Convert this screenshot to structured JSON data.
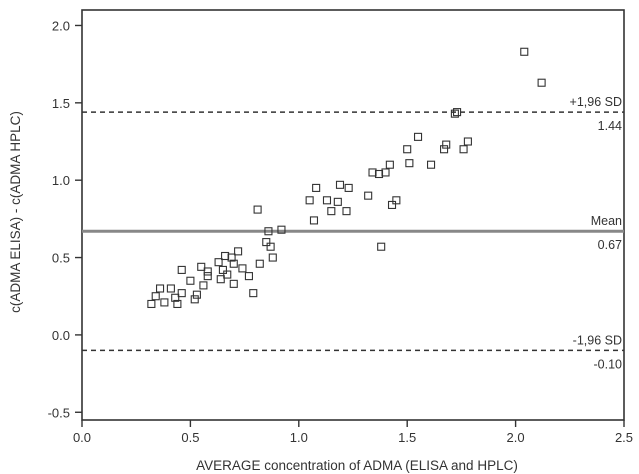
{
  "chart_data": {
    "type": "scatter",
    "xlabel": "AVERAGE concentration of ADMA (ELISA and HPLC)",
    "ylabel": "c(ADMA ELISA) - c(ADMA HPLC)",
    "xlim": [
      0,
      2.5
    ],
    "ylim": [
      -0.55,
      2.1
    ],
    "xticks": [
      "0.0",
      "0.5",
      "1.0",
      "1.5",
      "2.0",
      "2.5"
    ],
    "yticks": [
      "-0.5",
      "0.0",
      "0.5",
      "1.0",
      "1.5",
      "2.0"
    ],
    "grid": false,
    "reference_lines": [
      {
        "y": 1.44,
        "style": "dashed",
        "label_top": "+1,96 SD",
        "label_bottom": "1.44"
      },
      {
        "y": 0.67,
        "style": "solid",
        "label_top": "Mean",
        "label_bottom": "0.67"
      },
      {
        "y": -0.1,
        "style": "dashed",
        "label_top": "-1,96 SD",
        "label_bottom": "-0.10"
      }
    ],
    "points": [
      {
        "x": 0.32,
        "y": 0.2
      },
      {
        "x": 0.34,
        "y": 0.25
      },
      {
        "x": 0.36,
        "y": 0.3
      },
      {
        "x": 0.38,
        "y": 0.21
      },
      {
        "x": 0.41,
        "y": 0.3
      },
      {
        "x": 0.43,
        "y": 0.24
      },
      {
        "x": 0.44,
        "y": 0.2
      },
      {
        "x": 0.46,
        "y": 0.27
      },
      {
        "x": 0.46,
        "y": 0.42
      },
      {
        "x": 0.5,
        "y": 0.35
      },
      {
        "x": 0.52,
        "y": 0.23
      },
      {
        "x": 0.53,
        "y": 0.26
      },
      {
        "x": 0.55,
        "y": 0.44
      },
      {
        "x": 0.56,
        "y": 0.32
      },
      {
        "x": 0.58,
        "y": 0.38
      },
      {
        "x": 0.58,
        "y": 0.41
      },
      {
        "x": 0.63,
        "y": 0.47
      },
      {
        "x": 0.64,
        "y": 0.36
      },
      {
        "x": 0.65,
        "y": 0.42
      },
      {
        "x": 0.66,
        "y": 0.51
      },
      {
        "x": 0.67,
        "y": 0.39
      },
      {
        "x": 0.69,
        "y": 0.5
      },
      {
        "x": 0.7,
        "y": 0.46
      },
      {
        "x": 0.7,
        "y": 0.33
      },
      {
        "x": 0.72,
        "y": 0.54
      },
      {
        "x": 0.74,
        "y": 0.43
      },
      {
        "x": 0.77,
        "y": 0.38
      },
      {
        "x": 0.79,
        "y": 0.27
      },
      {
        "x": 0.81,
        "y": 0.81
      },
      {
        "x": 0.82,
        "y": 0.46
      },
      {
        "x": 0.85,
        "y": 0.6
      },
      {
        "x": 0.86,
        "y": 0.67
      },
      {
        "x": 0.87,
        "y": 0.57
      },
      {
        "x": 0.88,
        "y": 0.5
      },
      {
        "x": 0.92,
        "y": 0.68
      },
      {
        "x": 1.05,
        "y": 0.87
      },
      {
        "x": 1.07,
        "y": 0.74
      },
      {
        "x": 1.08,
        "y": 0.95
      },
      {
        "x": 1.13,
        "y": 0.87
      },
      {
        "x": 1.15,
        "y": 0.8
      },
      {
        "x": 1.18,
        "y": 0.86
      },
      {
        "x": 1.19,
        "y": 0.97
      },
      {
        "x": 1.22,
        "y": 0.8
      },
      {
        "x": 1.23,
        "y": 0.95
      },
      {
        "x": 1.32,
        "y": 0.9
      },
      {
        "x": 1.34,
        "y": 1.05
      },
      {
        "x": 1.37,
        "y": 1.04
      },
      {
        "x": 1.38,
        "y": 0.57
      },
      {
        "x": 1.4,
        "y": 1.05
      },
      {
        "x": 1.42,
        "y": 1.1
      },
      {
        "x": 1.43,
        "y": 0.84
      },
      {
        "x": 1.45,
        "y": 0.87
      },
      {
        "x": 1.5,
        "y": 1.2
      },
      {
        "x": 1.51,
        "y": 1.11
      },
      {
        "x": 1.55,
        "y": 1.28
      },
      {
        "x": 1.61,
        "y": 1.1
      },
      {
        "x": 1.67,
        "y": 1.2
      },
      {
        "x": 1.68,
        "y": 1.23
      },
      {
        "x": 1.72,
        "y": 1.43
      },
      {
        "x": 1.73,
        "y": 1.44
      },
      {
        "x": 1.76,
        "y": 1.2
      },
      {
        "x": 1.78,
        "y": 1.25
      },
      {
        "x": 2.04,
        "y": 1.83
      },
      {
        "x": 2.12,
        "y": 1.63
      }
    ]
  }
}
